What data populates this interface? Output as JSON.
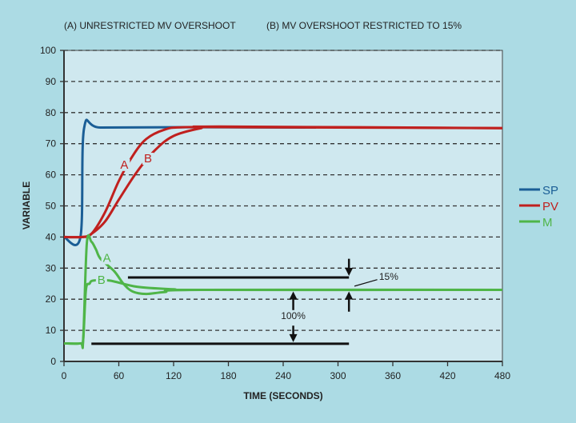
{
  "chart_data": {
    "type": "line",
    "title_a": "(A) UNRESTRICTED MV OVERSHOOT",
    "title_b": "(B) MV OVERSHOOT RESTRICTED TO 15%",
    "xlabel": "TIME (SECONDS)",
    "ylabel": "VARIABLE",
    "xlim": [
      0,
      480
    ],
    "ylim": [
      0,
      100
    ],
    "xticks": [
      0,
      60,
      120,
      180,
      240,
      300,
      360,
      420,
      480
    ],
    "yticks": [
      0,
      10,
      20,
      30,
      40,
      50,
      60,
      70,
      80,
      90,
      100
    ],
    "grid": "horizontal dashed",
    "legend_position": "right",
    "colors": {
      "SP": "#1a5e96",
      "PV": "#c0201e",
      "M": "#4fb548"
    },
    "legend": [
      "SP",
      "PV",
      "M"
    ],
    "series": [
      {
        "name": "SP",
        "color": "#1a5e96",
        "x": [
          0,
          18,
          22,
          40,
          120,
          276
        ],
        "y": [
          40,
          40,
          75,
          75.2,
          75.3,
          75.2
        ]
      },
      {
        "name": "PV A",
        "color": "#c0201e",
        "label": "A",
        "x": [
          0,
          20,
          30,
          45,
          60,
          75,
          90,
          110,
          130,
          200,
          480
        ],
        "y": [
          40,
          40,
          41,
          48,
          58,
          66,
          71.5,
          74.5,
          75.3,
          75.3,
          75
        ]
      },
      {
        "name": "PV B",
        "color": "#c0201e",
        "label": "B",
        "x": [
          0,
          20,
          30,
          45,
          60,
          80,
          100,
          120,
          150,
          170,
          480
        ],
        "y": [
          40,
          40,
          41,
          45,
          52,
          61,
          68,
          72.5,
          75,
          75.5,
          75
        ]
      },
      {
        "name": "M A",
        "color": "#4fb548",
        "label": "A",
        "x": [
          0,
          18,
          21,
          25,
          30,
          35,
          40,
          55,
          65,
          75,
          90,
          110,
          150,
          480
        ],
        "y": [
          5.8,
          5.8,
          7,
          38,
          38.5,
          36,
          33,
          29,
          25,
          22.5,
          21.7,
          22.3,
          23,
          23
        ]
      },
      {
        "name": "M B",
        "color": "#4fb548",
        "label": "B",
        "x": [
          0,
          18,
          21,
          24,
          28,
          32,
          50,
          80,
          120,
          150,
          480
        ],
        "y": [
          5.8,
          5.8,
          7,
          23,
          25,
          26,
          26,
          24,
          23.2,
          23,
          23
        ]
      }
    ],
    "series_labels": [
      {
        "text": "A",
        "color": "#c0201e",
        "x": 66,
        "y": 62
      },
      {
        "text": "B",
        "color": "#c0201e",
        "x": 92,
        "y": 64
      },
      {
        "text": "A",
        "color": "#4fb548",
        "x": 47,
        "y": 32
      },
      {
        "text": "B",
        "color": "#4fb548",
        "x": 41,
        "y": 25
      }
    ],
    "annotations": {
      "limit_15_label": "15%",
      "span_100_label": "100%",
      "limit_line_value": 27,
      "base_line_value": 5.7
    }
  }
}
